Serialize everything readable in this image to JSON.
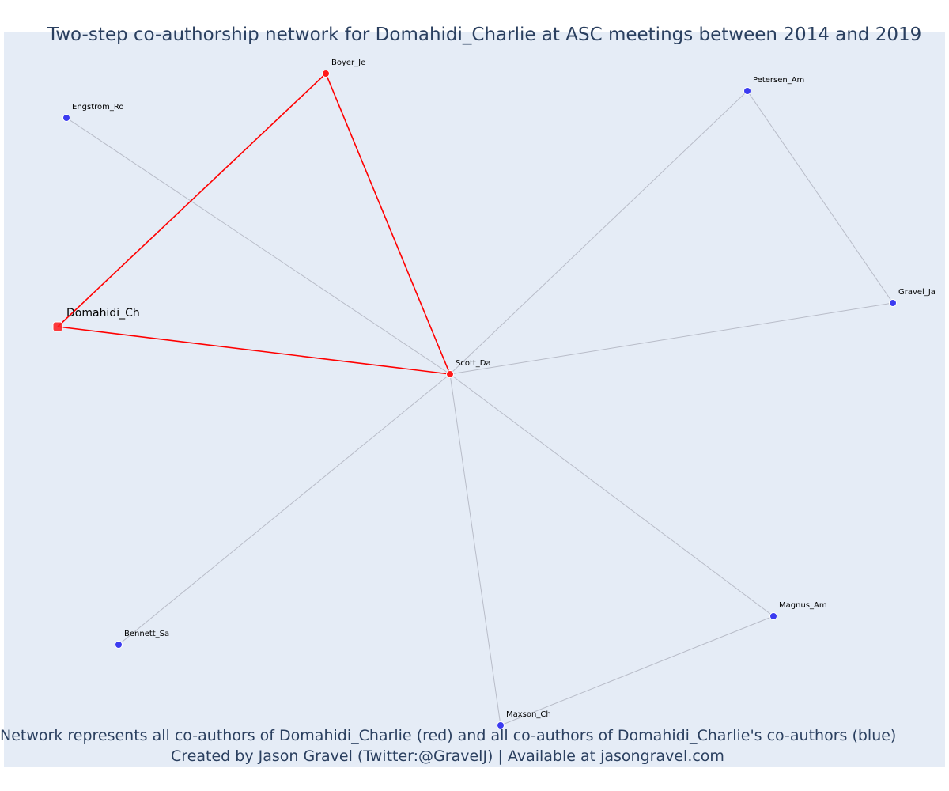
{
  "title": "Two-step co-authorship network for Domahidi_Charlie at ASC meetings between 2014 and 2019",
  "caption": {
    "line1": "Network represents all co-authors of Domahidi_Charlie (red) and all co-authors of Domahidi_Charlie's co-authors (blue)",
    "line2": "Created by Jason Gravel (Twitter:@GravelJ) | Available at jasongravel.com"
  },
  "colors": {
    "background": "#e5ecf6",
    "coauthor": "#ff1a1a",
    "second_step": "#3b3bf0",
    "red_edge": "#ff0000",
    "grey_edge": "#b8bcc8"
  },
  "chart_data": {
    "type": "network",
    "focus": "Domahidi_Ch",
    "nodes": [
      {
        "id": "Domahidi_Ch",
        "group": "focus"
      },
      {
        "id": "Boyer_Je",
        "group": "coauthor"
      },
      {
        "id": "Scott_Da",
        "group": "coauthor"
      },
      {
        "id": "Engstrom_Ro",
        "group": "second_step"
      },
      {
        "id": "Petersen_Am",
        "group": "second_step"
      },
      {
        "id": "Gravel_Ja",
        "group": "second_step"
      },
      {
        "id": "Bennett_Sa",
        "group": "second_step"
      },
      {
        "id": "Magnus_Am",
        "group": "second_step"
      },
      {
        "id": "Maxson_Ch",
        "group": "second_step"
      }
    ],
    "edges": [
      {
        "source": "Domahidi_Ch",
        "target": "Boyer_Je",
        "type": "red"
      },
      {
        "source": "Domahidi_Ch",
        "target": "Scott_Da",
        "type": "red"
      },
      {
        "source": "Boyer_Je",
        "target": "Scott_Da",
        "type": "red"
      },
      {
        "source": "Scott_Da",
        "target": "Engstrom_Ro",
        "type": "grey"
      },
      {
        "source": "Scott_Da",
        "target": "Petersen_Am",
        "type": "grey"
      },
      {
        "source": "Scott_Da",
        "target": "Gravel_Ja",
        "type": "grey"
      },
      {
        "source": "Scott_Da",
        "target": "Bennett_Sa",
        "type": "grey"
      },
      {
        "source": "Scott_Da",
        "target": "Magnus_Am",
        "type": "grey"
      },
      {
        "source": "Scott_Da",
        "target": "Maxson_Ch",
        "type": "grey"
      },
      {
        "source": "Petersen_Am",
        "target": "Gravel_Ja",
        "type": "grey"
      },
      {
        "source": "Magnus_Am",
        "target": "Maxson_Ch",
        "type": "grey"
      }
    ]
  }
}
